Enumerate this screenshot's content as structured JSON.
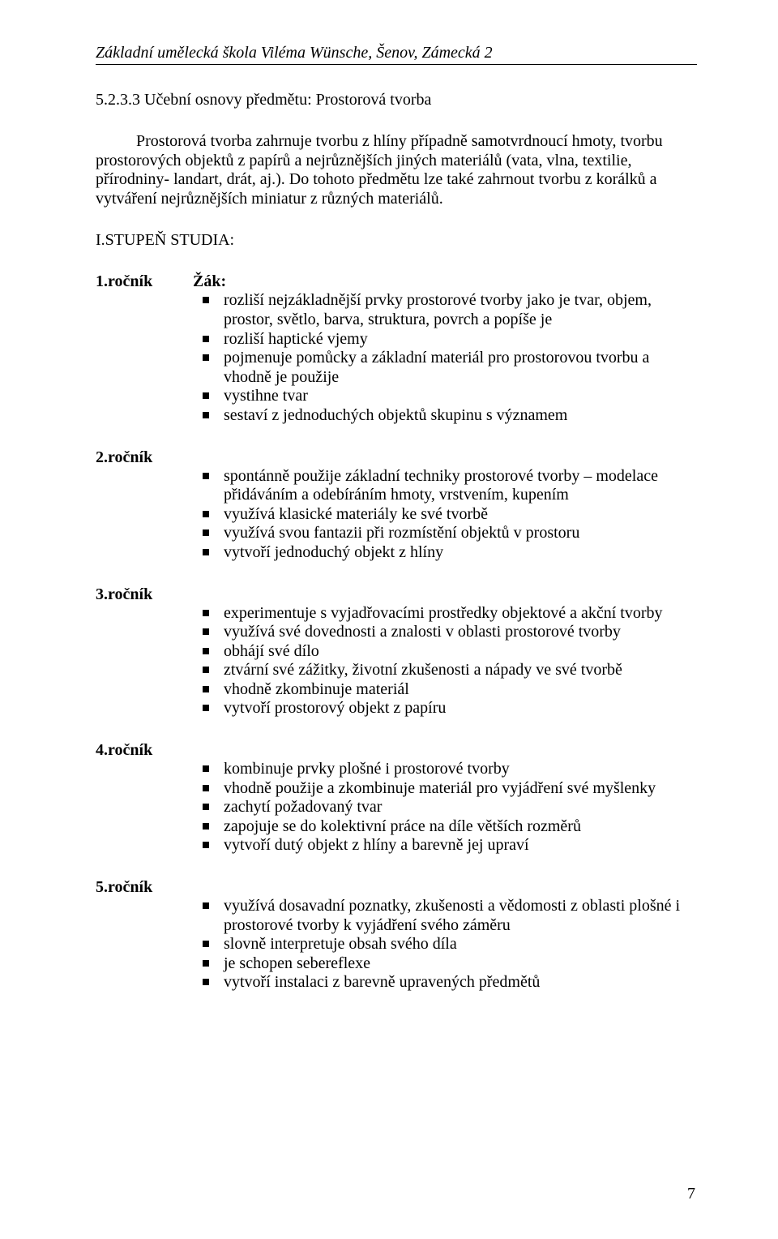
{
  "header": "Základní umělecká škola Viléma Wünsche, Šenov, Zámecká 2",
  "section_title": "5.2.3.3 Učební osnovy předmětu: Prostorová tvorba",
  "intro": "Prostorová tvorba zahrnuje tvorbu z hlíny případně samotvrdnoucí hmoty, tvorbu prostorových objektů z papírů a nejrůznějších jiných materiálů (vata, vlna, textilie, přírodniny- landart, drát, aj.). Do tohoto předmětu lze také zahrnout tvorbu z korálků a vytváření nejrůznějších miniatur z různých materiálů.",
  "stupen": "I.STUPEŇ STUDIA:",
  "zak": "Žák:",
  "years": [
    {
      "label": "1.ročník",
      "show_zak": true,
      "items": [
        "rozliší nejzákladnější prvky prostorové tvorby jako je tvar, objem, prostor, světlo, barva, struktura, povrch a popíše je",
        "rozliší haptické vjemy",
        "pojmenuje pomůcky a základní materiál pro prostorovou tvorbu a vhodně je použije",
        "vystihne tvar",
        "sestaví z jednoduchých objektů skupinu s významem"
      ]
    },
    {
      "label": "2.ročník",
      "show_zak": false,
      "items": [
        "spontánně použije základní techniky prostorové tvorby – modelace přidáváním a odebíráním hmoty, vrstvením, kupením",
        "využívá klasické materiály ke své tvorbě",
        "využívá svou fantazii při rozmístění objektů v prostoru",
        "vytvoří jednoduchý objekt z hlíny"
      ]
    },
    {
      "label": "3.ročník",
      "show_zak": false,
      "items": [
        "experimentuje s vyjadřovacími prostředky objektové a akční tvorby",
        "využívá své dovednosti a znalosti v oblasti prostorové tvorby",
        "obhájí své dílo",
        "ztvární své zážitky, životní zkušenosti a nápady ve své tvorbě",
        "vhodně zkombinuje materiál",
        "vytvoří prostorový objekt z papíru"
      ]
    },
    {
      "label": "4.ročník",
      "show_zak": false,
      "items": [
        "kombinuje prvky plošné i prostorové tvorby",
        "vhodně použije a zkombinuje materiál pro vyjádření své myšlenky",
        "zachytí požadovaný tvar",
        "zapojuje se do kolektivní práce na díle větších rozměrů",
        "vytvoří dutý objekt z hlíny a barevně jej upraví"
      ]
    },
    {
      "label": "5.ročník",
      "show_zak": false,
      "items": [
        "využívá dosavadní poznatky, zkušenosti a vědomosti z oblasti plošné i prostorové tvorby k vyjádření svého záměru",
        "slovně interpretuje obsah svého díla",
        "je schopen sebereflexe",
        "vytvoří instalaci z barevně upravených předmětů"
      ]
    }
  ],
  "page_number": "7"
}
